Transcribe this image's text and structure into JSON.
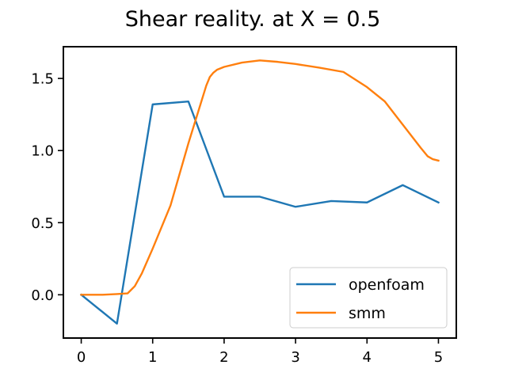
{
  "chart_data": {
    "type": "line",
    "title": "Shear reality. at X = 0.5",
    "xlabel": "",
    "ylabel": "",
    "xlim": [
      -0.25,
      5.25
    ],
    "ylim": [
      -0.3,
      1.72
    ],
    "xticks": [
      0,
      1,
      2,
      3,
      4,
      5
    ],
    "xtick_labels": [
      "0",
      "1",
      "2",
      "3",
      "4",
      "5"
    ],
    "yticks": [
      0.0,
      0.5,
      1.0,
      1.5
    ],
    "ytick_labels": [
      "0.0",
      "0.5",
      "1.0",
      "1.5"
    ],
    "grid": false,
    "legend_position": "lower-right",
    "series": [
      {
        "name": "openfoam",
        "color": "#1f77b4",
        "x": [
          0,
          0.5,
          1.0,
          1.5,
          2.0,
          2.5,
          3.0,
          3.5,
          4.0,
          4.5,
          5.0
        ],
        "y": [
          0.0,
          -0.2,
          1.32,
          1.34,
          0.68,
          0.68,
          0.61,
          0.65,
          0.64,
          0.76,
          0.64
        ]
      },
      {
        "name": "smm",
        "color": "#ff7f0e",
        "x": [
          0,
          0.3,
          0.5,
          0.65,
          0.75,
          0.85,
          1.0,
          1.25,
          1.5,
          1.75,
          1.8,
          1.85,
          1.9,
          2.0,
          2.25,
          2.5,
          2.75,
          3.0,
          3.33,
          3.67,
          4.0,
          4.25,
          4.5,
          4.75,
          4.85,
          4.92,
          5.0
        ],
        "y": [
          0.0,
          0.0,
          0.005,
          0.01,
          0.06,
          0.15,
          0.32,
          0.62,
          1.05,
          1.45,
          1.51,
          1.54,
          1.56,
          1.58,
          1.61,
          1.625,
          1.615,
          1.6,
          1.575,
          1.545,
          1.44,
          1.34,
          1.18,
          1.02,
          0.96,
          0.94,
          0.93
        ]
      }
    ]
  }
}
